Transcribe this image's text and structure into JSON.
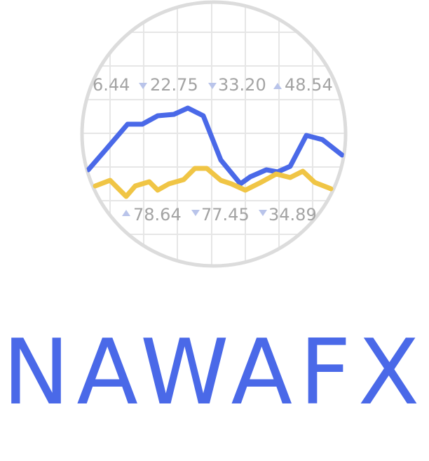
{
  "brand": {
    "name": "NAWAFX"
  },
  "colors": {
    "primary": "#4a69e8",
    "secondary": "#f0c545",
    "ring": "#dcdcdc",
    "grid": "#e6e6e6",
    "ticker_text": "#a3a3a3",
    "ticker_arrow": "#b9c4ea"
  },
  "tickers_top": [
    {
      "value": "6.44",
      "arrow": "none"
    },
    {
      "value": "22.75",
      "arrow": "down"
    },
    {
      "value": "33.20",
      "arrow": "down"
    },
    {
      "value": "48.54",
      "arrow": "up"
    }
  ],
  "tickers_bottom": [
    {
      "value": "78.64",
      "arrow": "up"
    },
    {
      "value": "77.45",
      "arrow": "down"
    },
    {
      "value": "34.89",
      "arrow": "down"
    }
  ],
  "icon": "circular-line-chart-icon"
}
